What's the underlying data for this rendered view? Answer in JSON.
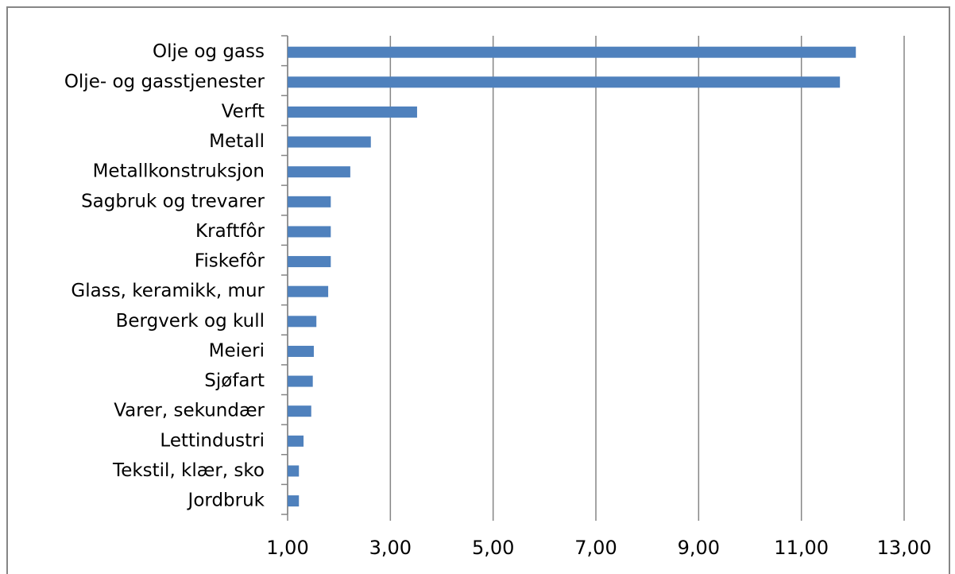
{
  "chart_data": {
    "type": "barh",
    "categories": [
      "Olje og gass",
      "Olje- og gasstjenester",
      "Verft",
      "Metall",
      "Metallkonstruksjon",
      "Sagbruk og trevarer",
      "Kraftfôr",
      "Fiskefôr",
      "Glass, keramikk, mur",
      "Bergverk og kull",
      "Meieri",
      "Sjøfart",
      "Varer, sekundær",
      "Lettindustri",
      "Tekstil, klær, sko",
      "Jordbruk"
    ],
    "values": [
      12.06,
      11.75,
      3.52,
      2.62,
      2.22,
      1.84,
      1.84,
      1.84,
      1.79,
      1.56,
      1.51,
      1.49,
      1.46,
      1.31,
      1.22,
      1.22
    ],
    "color": "#4f81bd",
    "xlim": [
      1,
      13
    ],
    "xticks": [
      {
        "value": 1,
        "label": "1,00"
      },
      {
        "value": 3,
        "label": "3,00"
      },
      {
        "value": 5,
        "label": "5,00"
      },
      {
        "value": 7,
        "label": "7,00"
      },
      {
        "value": 9,
        "label": "9,00"
      },
      {
        "value": 11,
        "label": "11,00"
      },
      {
        "value": 13,
        "label": "13,00"
      }
    ],
    "grid": true
  }
}
